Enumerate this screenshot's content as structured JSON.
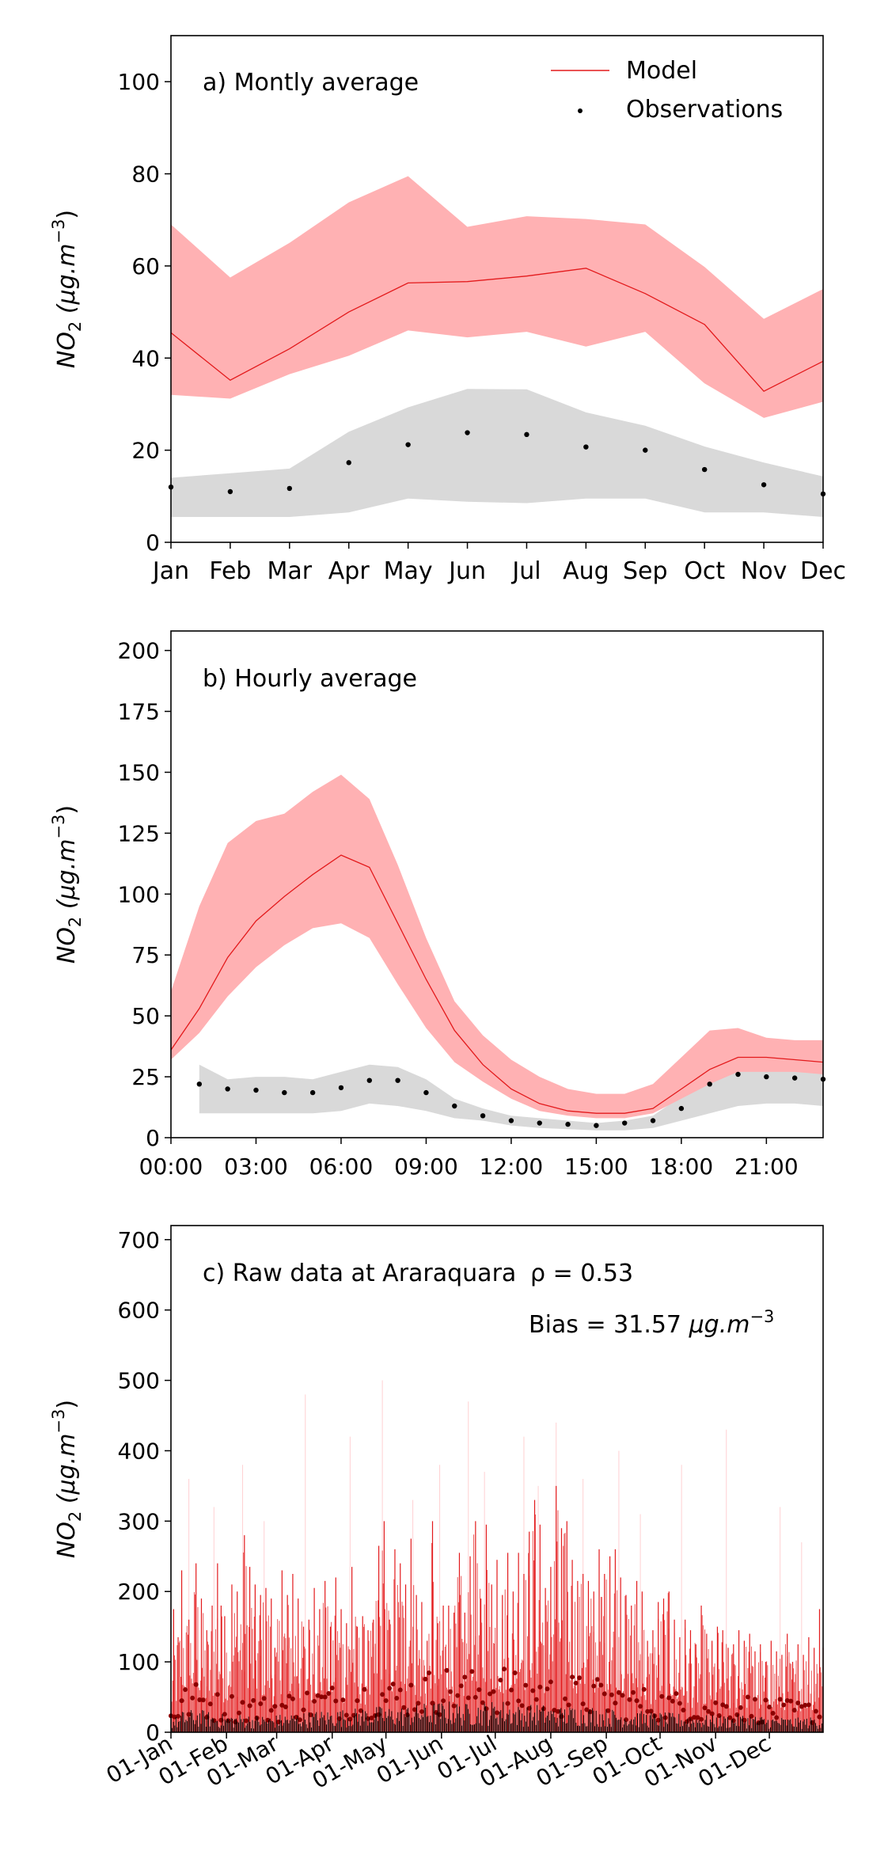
{
  "chart_data": [
    {
      "id": "a",
      "type": "line",
      "annotation": "a) Montly average",
      "ylabel_main": "NO",
      "ylabel_sub": "2",
      "ylabel_unit": " (μg.m",
      "ylabel_exp": "−3",
      "ylabel_close": ")",
      "legend": {
        "placement": "top-right",
        "model_label": "Model",
        "obs_label": "Observations"
      },
      "x_ticks": [
        "Jan",
        "Feb",
        "Mar",
        "Apr",
        "May",
        "Jun",
        "Jul",
        "Aug",
        "Sep",
        "Oct",
        "Nov",
        "Dec"
      ],
      "y_ticks": [
        0,
        20,
        40,
        60,
        80,
        100
      ],
      "ylim": [
        0,
        110
      ],
      "xlim": [
        0,
        11
      ],
      "grid": false,
      "model": {
        "color": "#e31a1c",
        "band_color": "#ffb1b3",
        "x": [
          0,
          1,
          2,
          3,
          4,
          5,
          6,
          7,
          8,
          9,
          10,
          11
        ],
        "mean": [
          45.5,
          35.2,
          42.0,
          50.0,
          56.3,
          56.6,
          57.8,
          59.5,
          54.0,
          47.3,
          32.8,
          39.3
        ],
        "lower": [
          32.0,
          31.2,
          36.5,
          40.5,
          46.0,
          44.5,
          45.7,
          42.5,
          45.7,
          34.5,
          27.0,
          30.5
        ],
        "upper": [
          69.0,
          57.5,
          65.0,
          73.8,
          79.5,
          68.5,
          70.8,
          70.2,
          69.0,
          59.8,
          48.5,
          55.0
        ]
      },
      "observations": {
        "color": "#000000",
        "band_color": "#d9d9d9",
        "x": [
          0,
          1,
          2,
          3,
          4,
          5,
          6,
          7,
          8,
          9,
          10,
          11
        ],
        "mean": [
          12.0,
          11.0,
          11.7,
          17.3,
          21.2,
          23.8,
          23.4,
          20.7,
          20.0,
          15.8,
          12.5,
          10.5
        ],
        "lower": [
          5.5,
          5.5,
          5.5,
          6.5,
          9.5,
          8.8,
          8.5,
          9.5,
          9.5,
          6.5,
          6.5,
          5.5
        ],
        "upper": [
          14.0,
          15.0,
          16.0,
          24.0,
          29.3,
          33.3,
          33.2,
          28.2,
          25.3,
          20.8,
          17.3,
          14.3
        ]
      }
    },
    {
      "id": "b",
      "type": "line",
      "annotation": "b) Hourly average",
      "ylabel_main": "NO",
      "ylabel_sub": "2",
      "ylabel_unit": " (μg.m",
      "ylabel_exp": "−3",
      "ylabel_close": ")",
      "x_ticks": [
        "00:00",
        "03:00",
        "06:00",
        "09:00",
        "12:00",
        "15:00",
        "18:00",
        "21:00"
      ],
      "x_tick_values": [
        0,
        3,
        6,
        9,
        12,
        15,
        18,
        21
      ],
      "y_ticks": [
        0,
        25,
        50,
        75,
        100,
        125,
        150,
        175,
        200
      ],
      "ylim": [
        0,
        208
      ],
      "xlim": [
        0,
        23
      ],
      "grid": false,
      "model": {
        "color": "#e31a1c",
        "band_color": "#ffb1b3",
        "x": [
          0,
          1,
          2,
          3,
          4,
          5,
          6,
          7,
          8,
          9,
          10,
          11,
          12,
          13,
          14,
          15,
          16,
          17,
          18,
          19,
          20,
          21,
          22,
          23
        ],
        "mean": [
          36,
          53,
          74,
          89,
          99,
          108,
          116,
          111,
          88,
          65,
          44,
          30,
          20,
          14,
          11,
          10,
          10,
          12,
          20,
          28,
          33,
          33,
          32,
          31
        ],
        "lower": [
          32,
          43,
          58,
          70,
          79,
          86,
          88,
          82,
          63,
          45,
          31,
          23,
          16,
          11,
          9,
          8,
          8,
          10,
          16,
          22,
          27,
          27,
          27,
          26
        ],
        "upper": [
          60,
          95,
          121,
          130,
          133,
          142,
          149,
          139,
          112,
          82,
          56,
          42,
          32,
          25,
          20,
          18,
          18,
          22,
          33,
          44,
          45,
          41,
          40,
          40
        ]
      },
      "observations": {
        "color": "#000000",
        "band_color": "#d9d9d9",
        "x": [
          1,
          2,
          3,
          4,
          5,
          6,
          7,
          8,
          9,
          10,
          11,
          12,
          13,
          14,
          15,
          16,
          17,
          18,
          19,
          20,
          21,
          22,
          23
        ],
        "mean": [
          22,
          20,
          19.5,
          18.5,
          18.5,
          20.5,
          23.5,
          23.5,
          18.5,
          13,
          9,
          7,
          6,
          5.5,
          5,
          6,
          7,
          12,
          22,
          26,
          25,
          24.5,
          24
        ],
        "lower": [
          10,
          10,
          10,
          10,
          10,
          11,
          14,
          13,
          11,
          8,
          7,
          5,
          4,
          3.5,
          3,
          3,
          4,
          7,
          10,
          13,
          14,
          14,
          13
        ],
        "upper": [
          30,
          24,
          25,
          25,
          24,
          27,
          30,
          29,
          24,
          16,
          12,
          9,
          8,
          7,
          6,
          7,
          9,
          17,
          28,
          32,
          32,
          31,
          30
        ]
      }
    },
    {
      "id": "c",
      "type": "line",
      "annotation": "c) Raw data at Araraquara",
      "r_label": "ρ = 0.53",
      "bias_label": "Bias = 31.57 ",
      "bias_unit": "μg.m",
      "bias_exp": "−3",
      "ylabel_main": "NO",
      "ylabel_sub": "2",
      "ylabel_unit": " (μg.m",
      "ylabel_exp": "−3",
      "ylabel_close": ")",
      "x_ticks": [
        "01-Jan",
        "01-Feb",
        "01-Mar",
        "01-Apr",
        "01-May",
        "01-Jun",
        "01-Jul",
        "01-Aug",
        "01-Sep",
        "01-Oct",
        "01-Nov",
        "01-Dec"
      ],
      "x_tick_days": [
        0,
        31,
        59,
        90,
        120,
        151,
        181,
        212,
        243,
        273,
        304,
        334
      ],
      "y_ticks": [
        0,
        100,
        200,
        300,
        400,
        500,
        600,
        700
      ],
      "ylim": [
        0,
        720
      ],
      "xlim": [
        "01-Jan",
        "31-Dec"
      ],
      "grid": false,
      "model_color": "#e31a1c",
      "model_light_color": "#ffd0d2",
      "obs_color": "#000000",
      "obs_dot_color": "#8b0000",
      "model_peaks": [
        {
          "d": 1.5,
          "v": 175
        },
        {
          "d": 4,
          "v": 135
        },
        {
          "d": 6,
          "v": 230
        },
        {
          "d": 10,
          "v": 160
        },
        {
          "d": 14,
          "v": 240
        },
        {
          "d": 17,
          "v": 190
        },
        {
          "d": 20,
          "v": 145
        },
        {
          "d": 23,
          "v": 180
        },
        {
          "d": 26,
          "v": 240
        },
        {
          "d": 28,
          "v": 180
        },
        {
          "d": 30,
          "v": 165
        },
        {
          "d": 34,
          "v": 210
        },
        {
          "d": 37,
          "v": 200
        },
        {
          "d": 41,
          "v": 280
        },
        {
          "d": 44,
          "v": 235
        },
        {
          "d": 47,
          "v": 210
        },
        {
          "d": 50,
          "v": 195
        },
        {
          "d": 53,
          "v": 205
        },
        {
          "d": 56,
          "v": 190
        },
        {
          "d": 58,
          "v": 120
        },
        {
          "d": 62,
          "v": 230
        },
        {
          "d": 65,
          "v": 195
        },
        {
          "d": 68,
          "v": 225
        },
        {
          "d": 71,
          "v": 190
        },
        {
          "d": 74,
          "v": 150
        },
        {
          "d": 77,
          "v": 160
        },
        {
          "d": 80,
          "v": 205
        },
        {
          "d": 83,
          "v": 175
        },
        {
          "d": 86,
          "v": 215
        },
        {
          "d": 89,
          "v": 150
        },
        {
          "d": 92,
          "v": 220
        },
        {
          "d": 95,
          "v": 175
        },
        {
          "d": 98,
          "v": 155
        },
        {
          "d": 101,
          "v": 235
        },
        {
          "d": 104,
          "v": 150
        },
        {
          "d": 107,
          "v": 165
        },
        {
          "d": 110,
          "v": 145
        },
        {
          "d": 113,
          "v": 160
        },
        {
          "d": 116,
          "v": 265
        },
        {
          "d": 119,
          "v": 300
        },
        {
          "d": 122,
          "v": 160
        },
        {
          "d": 125,
          "v": 260
        },
        {
          "d": 128,
          "v": 240
        },
        {
          "d": 131,
          "v": 210
        },
        {
          "d": 134,
          "v": 275
        },
        {
          "d": 137,
          "v": 195
        },
        {
          "d": 140,
          "v": 185
        },
        {
          "d": 143,
          "v": 130
        },
        {
          "d": 146,
          "v": 300
        },
        {
          "d": 149,
          "v": 155
        },
        {
          "d": 152,
          "v": 180
        },
        {
          "d": 155,
          "v": 180
        },
        {
          "d": 158,
          "v": 170
        },
        {
          "d": 161,
          "v": 255
        },
        {
          "d": 164,
          "v": 170
        },
        {
          "d": 167,
          "v": 250
        },
        {
          "d": 170,
          "v": 300
        },
        {
          "d": 173,
          "v": 190
        },
        {
          "d": 176,
          "v": 295
        },
        {
          "d": 179,
          "v": 210
        },
        {
          "d": 182,
          "v": 245
        },
        {
          "d": 185,
          "v": 195
        },
        {
          "d": 188,
          "v": 255
        },
        {
          "d": 191,
          "v": 200
        },
        {
          "d": 194,
          "v": 255
        },
        {
          "d": 197,
          "v": 225
        },
        {
          "d": 200,
          "v": 285
        },
        {
          "d": 203,
          "v": 330
        },
        {
          "d": 206,
          "v": 295
        },
        {
          "d": 209,
          "v": 205
        },
        {
          "d": 212,
          "v": 235
        },
        {
          "d": 215,
          "v": 350
        },
        {
          "d": 218,
          "v": 290
        },
        {
          "d": 221,
          "v": 300
        },
        {
          "d": 224,
          "v": 245
        },
        {
          "d": 227,
          "v": 215
        },
        {
          "d": 230,
          "v": 225
        },
        {
          "d": 233,
          "v": 215
        },
        {
          "d": 236,
          "v": 200
        },
        {
          "d": 239,
          "v": 260
        },
        {
          "d": 242,
          "v": 225
        },
        {
          "d": 245,
          "v": 250
        },
        {
          "d": 248,
          "v": 260
        },
        {
          "d": 251,
          "v": 220
        },
        {
          "d": 254,
          "v": 195
        },
        {
          "d": 257,
          "v": 180
        },
        {
          "d": 260,
          "v": 215
        },
        {
          "d": 263,
          "v": 200
        },
        {
          "d": 266,
          "v": 130
        },
        {
          "d": 269,
          "v": 145
        },
        {
          "d": 272,
          "v": 185
        },
        {
          "d": 275,
          "v": 190
        },
        {
          "d": 278,
          "v": 200
        },
        {
          "d": 281,
          "v": 160
        },
        {
          "d": 284,
          "v": 135
        },
        {
          "d": 287,
          "v": 160
        },
        {
          "d": 290,
          "v": 145
        },
        {
          "d": 293,
          "v": 125
        },
        {
          "d": 296,
          "v": 180
        },
        {
          "d": 299,
          "v": 140
        },
        {
          "d": 302,
          "v": 130
        },
        {
          "d": 305,
          "v": 150
        },
        {
          "d": 308,
          "v": 145
        },
        {
          "d": 311,
          "v": 120
        },
        {
          "d": 314,
          "v": 125
        },
        {
          "d": 317,
          "v": 145
        },
        {
          "d": 320,
          "v": 130
        },
        {
          "d": 323,
          "v": 140
        },
        {
          "d": 326,
          "v": 115
        },
        {
          "d": 329,
          "v": 125
        },
        {
          "d": 332,
          "v": 100
        },
        {
          "d": 335,
          "v": 130
        },
        {
          "d": 338,
          "v": 115
        },
        {
          "d": 341,
          "v": 110
        },
        {
          "d": 344,
          "v": 140
        },
        {
          "d": 347,
          "v": 100
        },
        {
          "d": 350,
          "v": 125
        },
        {
          "d": 353,
          "v": 110
        },
        {
          "d": 356,
          "v": 135
        },
        {
          "d": 359,
          "v": 120
        },
        {
          "d": 362,
          "v": 175
        },
        {
          "d": 364,
          "v": 120
        }
      ],
      "model_light_peaks": [
        {
          "d": 10,
          "v": 360
        },
        {
          "d": 24,
          "v": 320
        },
        {
          "d": 40,
          "v": 380
        },
        {
          "d": 52,
          "v": 300
        },
        {
          "d": 75,
          "v": 480
        },
        {
          "d": 100,
          "v": 420
        },
        {
          "d": 118,
          "v": 500
        },
        {
          "d": 135,
          "v": 330
        },
        {
          "d": 150,
          "v": 380
        },
        {
          "d": 166,
          "v": 470
        },
        {
          "d": 175,
          "v": 370
        },
        {
          "d": 197,
          "v": 420
        },
        {
          "d": 205,
          "v": 350
        },
        {
          "d": 215,
          "v": 440
        },
        {
          "d": 230,
          "v": 360
        },
        {
          "d": 250,
          "v": 400
        },
        {
          "d": 262,
          "v": 310
        },
        {
          "d": 285,
          "v": 380
        },
        {
          "d": 310,
          "v": 430
        },
        {
          "d": 340,
          "v": 320
        },
        {
          "d": 352,
          "v": 270
        }
      ],
      "obs_peaks": [
        {
          "d": 5,
          "v": 40
        },
        {
          "d": 15,
          "v": 45
        },
        {
          "d": 27,
          "v": 35
        },
        {
          "d": 40,
          "v": 35
        },
        {
          "d": 55,
          "v": 32
        },
        {
          "d": 70,
          "v": 38
        },
        {
          "d": 85,
          "v": 42
        },
        {
          "d": 100,
          "v": 45
        },
        {
          "d": 115,
          "v": 50
        },
        {
          "d": 125,
          "v": 48
        },
        {
          "d": 140,
          "v": 55
        },
        {
          "d": 155,
          "v": 60
        },
        {
          "d": 165,
          "v": 55
        },
        {
          "d": 175,
          "v": 58
        },
        {
          "d": 185,
          "v": 62
        },
        {
          "d": 195,
          "v": 50
        },
        {
          "d": 205,
          "v": 55
        },
        {
          "d": 215,
          "v": 48
        },
        {
          "d": 225,
          "v": 52
        },
        {
          "d": 235,
          "v": 50
        },
        {
          "d": 245,
          "v": 45
        },
        {
          "d": 255,
          "v": 42
        },
        {
          "d": 265,
          "v": 40
        },
        {
          "d": 275,
          "v": 38
        },
        {
          "d": 290,
          "v": 35
        },
        {
          "d": 305,
          "v": 32
        },
        {
          "d": 320,
          "v": 35
        },
        {
          "d": 335,
          "v": 30
        },
        {
          "d": 350,
          "v": 28
        },
        {
          "d": 362,
          "v": 30
        }
      ]
    }
  ]
}
